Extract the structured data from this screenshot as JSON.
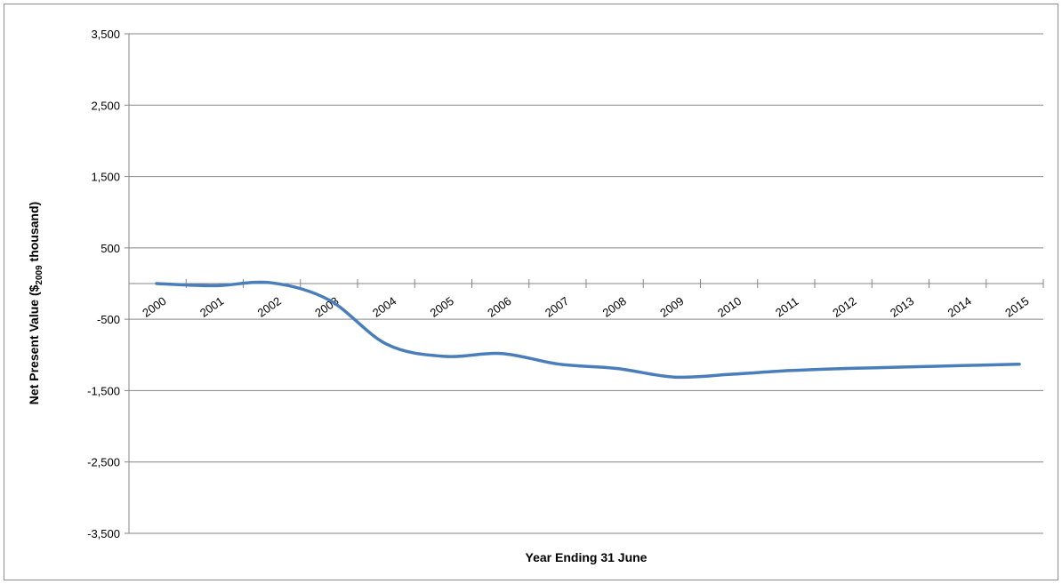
{
  "chart_data": {
    "type": "line",
    "title": "",
    "xlabel": "Year Ending 31 June",
    "ylabel": {
      "prefix": "Net Present Value ($",
      "subscript": "2009",
      "suffix": " thousand)"
    },
    "categories": [
      "2000",
      "2001",
      "2002",
      "2003",
      "2004",
      "2005",
      "2006",
      "2007",
      "2008",
      "2009",
      "2010",
      "2011",
      "2012",
      "2013",
      "2014",
      "2015"
    ],
    "series": [
      {
        "values": [
          0,
          -30,
          10,
          -230,
          -850,
          -1020,
          -980,
          -1130,
          -1190,
          -1310,
          -1270,
          -1220,
          -1190,
          -1170,
          -1150,
          -1130
        ]
      }
    ],
    "ylim": [
      -4000,
      4000
    ],
    "yticks": [
      3500,
      2500,
      1500,
      500,
      -500,
      -1500,
      -2500,
      -3500
    ],
    "ytick_labels": [
      "3,500",
      "2,500",
      "1,500",
      "500",
      "-500",
      "-1,500",
      "-2,500",
      "-3,500"
    ],
    "grid": true,
    "legend": "none",
    "colors": {
      "series": "#4a7ebb",
      "grid": "#868686",
      "axis": "#868686"
    }
  }
}
